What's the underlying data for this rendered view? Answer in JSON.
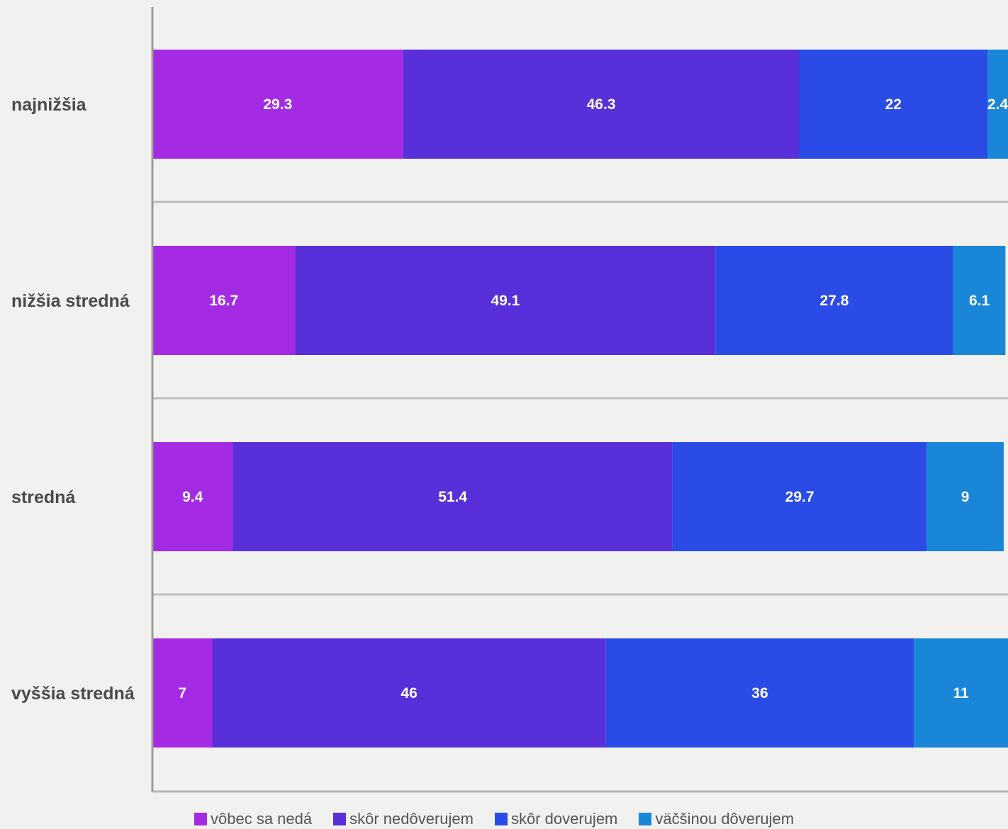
{
  "chart_data": {
    "type": "bar",
    "orientation": "horizontal",
    "stacked": true,
    "categories": [
      "najnižšia",
      "nižšia stredná",
      "stredná",
      "vyššia stredná"
    ],
    "series": [
      {
        "name": "vôbec sa nedá",
        "color": "#a42be3",
        "values": [
          29.3,
          16.7,
          9.4,
          7
        ]
      },
      {
        "name": "skôr nedôverujem",
        "color": "#582fd8",
        "values": [
          46.3,
          49.1,
          51.4,
          46
        ]
      },
      {
        "name": "skôr doverujem",
        "color": "#2a4be5",
        "values": [
          22,
          27.8,
          29.7,
          36
        ]
      },
      {
        "name": "väčšinou dôverujem",
        "color": "#1a86d8",
        "values": [
          2.4,
          6.1,
          9,
          11
        ]
      }
    ],
    "value_labels": [
      [
        "29.3",
        "46.3",
        "22",
        "2.4"
      ],
      [
        "16.7",
        "49.1",
        "27.8",
        "6.1"
      ],
      [
        "9.4",
        "51.4",
        "29.7",
        "9"
      ],
      [
        "7",
        "46",
        "36",
        "11"
      ]
    ],
    "xlim": [
      0,
      100
    ],
    "grid": true,
    "legend_position": "bottom"
  }
}
